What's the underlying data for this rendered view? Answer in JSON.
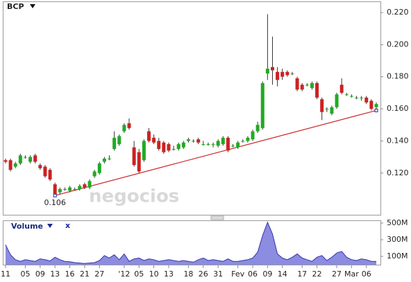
{
  "chart_data": [
    {
      "type": "candlestick",
      "title": "BCP",
      "categories": [
        "11",
        null,
        null,
        null,
        "05",
        null,
        null,
        "09",
        null,
        null,
        "13",
        null,
        null,
        "16",
        null,
        null,
        "21",
        null,
        null,
        "27",
        null,
        null,
        null,
        null,
        "'12",
        null,
        null,
        "05",
        null,
        null,
        "10",
        null,
        null,
        "13",
        null,
        null,
        null,
        "18",
        null,
        null,
        "26",
        null,
        null,
        "31",
        null,
        null,
        null,
        "Fev",
        null,
        null,
        "06",
        null,
        null,
        "09",
        null,
        null,
        "14",
        null,
        null,
        null,
        "17",
        null,
        null,
        "22",
        null,
        null,
        null,
        "27",
        null,
        null,
        "Mar",
        null,
        null,
        "06",
        null,
        null
      ],
      "open": [
        0.128,
        0.128,
        0.124,
        0.126,
        0.13,
        0.127,
        0.131,
        0.125,
        0.124,
        0.122,
        0.113,
        0.108,
        0.11,
        0.109,
        0.11,
        0.11,
        0.113,
        0.111,
        0.118,
        0.12,
        0.127,
        0.129,
        0.135,
        0.138,
        0.146,
        0.151,
        0.136,
        0.133,
        0.128,
        0.146,
        0.142,
        0.14,
        0.139,
        0.138,
        0.135,
        0.135,
        0.136,
        0.14,
        0.14,
        0.141,
        0.138,
        0.138,
        0.138,
        0.137,
        0.138,
        0.142,
        0.137,
        0.136,
        0.14,
        0.14,
        0.141,
        0.146,
        0.148,
        0.182,
        0.186,
        0.183,
        0.183,
        0.183,
        0.182,
        0.179,
        0.175,
        0.175,
        0.173,
        0.176,
        0.166,
        0.16,
        0.157,
        0.161,
        0.175,
        0.169,
        0.168,
        0.167,
        0.167,
        0.167,
        0.165,
        0.161
      ],
      "high": [
        0.129,
        0.129,
        0.127,
        0.132,
        0.131,
        0.131,
        0.132,
        0.126,
        0.125,
        0.123,
        0.114,
        0.111,
        0.111,
        0.112,
        0.111,
        0.113,
        0.114,
        0.116,
        0.122,
        0.127,
        0.13,
        0.131,
        0.146,
        0.144,
        0.151,
        0.154,
        0.14,
        0.135,
        0.141,
        0.148,
        0.144,
        0.142,
        0.14,
        0.139,
        0.137,
        0.139,
        0.14,
        0.142,
        0.141,
        0.142,
        0.14,
        0.139,
        0.139,
        0.141,
        0.143,
        0.143,
        0.138,
        0.14,
        0.141,
        0.143,
        0.147,
        0.152,
        0.177,
        0.219,
        0.205,
        0.186,
        0.185,
        0.184,
        0.183,
        0.18,
        0.176,
        0.176,
        0.177,
        0.177,
        0.167,
        0.161,
        0.162,
        0.17,
        0.179,
        0.17,
        0.169,
        0.168,
        0.168,
        0.168,
        0.166,
        0.164
      ],
      "low": [
        0.126,
        0.121,
        0.123,
        0.125,
        0.129,
        0.126,
        0.126,
        0.122,
        0.117,
        0.115,
        0.106,
        0.107,
        0.109,
        0.108,
        0.109,
        0.109,
        0.11,
        0.11,
        0.117,
        0.119,
        0.126,
        0.128,
        0.134,
        0.137,
        0.145,
        0.147,
        0.124,
        0.12,
        0.127,
        0.139,
        0.138,
        0.134,
        0.132,
        0.133,
        0.134,
        0.134,
        0.135,
        0.139,
        0.139,
        0.138,
        0.137,
        0.137,
        0.136,
        0.136,
        0.137,
        0.133,
        0.136,
        0.135,
        0.139,
        0.139,
        0.14,
        0.145,
        0.147,
        0.178,
        0.175,
        0.174,
        0.178,
        0.18,
        0.181,
        0.171,
        0.171,
        0.174,
        0.172,
        0.166,
        0.153,
        0.158,
        0.156,
        0.16,
        0.169,
        0.168,
        0.167,
        0.166,
        0.165,
        0.163,
        0.159,
        0.16
      ],
      "close": [
        0.127,
        0.122,
        0.126,
        0.131,
        0.13,
        0.13,
        0.127,
        0.123,
        0.118,
        0.116,
        0.107,
        0.11,
        0.11,
        0.111,
        0.11,
        0.112,
        0.111,
        0.115,
        0.121,
        0.126,
        0.129,
        0.129,
        0.142,
        0.143,
        0.15,
        0.148,
        0.125,
        0.121,
        0.14,
        0.14,
        0.139,
        0.135,
        0.133,
        0.134,
        0.135,
        0.138,
        0.139,
        0.141,
        0.14,
        0.139,
        0.138,
        0.138,
        0.138,
        0.14,
        0.142,
        0.134,
        0.137,
        0.139,
        0.14,
        0.142,
        0.146,
        0.15,
        0.176,
        0.185,
        0.184,
        0.178,
        0.18,
        0.181,
        0.182,
        0.172,
        0.172,
        0.175,
        0.176,
        0.167,
        0.158,
        0.16,
        0.161,
        0.169,
        0.17,
        0.169,
        0.168,
        0.167,
        0.167,
        0.164,
        0.16,
        0.163
      ],
      "up_color": "#22aa22",
      "down_color": "#cc2222",
      "ylim": [
        0.094,
        0.2265
      ],
      "yticks": [
        {
          "value": 0.12,
          "label": "0.120"
        },
        {
          "value": 0.14,
          "label": "0.140"
        },
        {
          "value": 0.16,
          "label": "0.160"
        },
        {
          "value": 0.18,
          "label": "0.180"
        },
        {
          "value": 0.2,
          "label": "0.200"
        },
        {
          "value": 0.22,
          "label": "0.220"
        }
      ],
      "trendline": {
        "x": [
          10,
          75
        ],
        "values": [
          0.106,
          0.159
        ],
        "color": "#cc2222"
      },
      "low_label": {
        "x": 10,
        "value": 0.106,
        "label": "0.106"
      },
      "watermark": "negocios"
    },
    {
      "type": "area",
      "title": "Volume",
      "close_label": "x",
      "values": [
        240,
        120,
        60,
        40,
        60,
        50,
        40,
        70,
        60,
        45,
        90,
        60,
        40,
        35,
        25,
        20,
        15,
        20,
        25,
        50,
        110,
        80,
        120,
        60,
        130,
        40,
        70,
        80,
        50,
        70,
        60,
        40,
        50,
        60,
        50,
        40,
        50,
        40,
        30,
        60,
        80,
        50,
        60,
        50,
        40,
        70,
        40,
        40,
        50,
        60,
        80,
        150,
        350,
        510,
        370,
        130,
        80,
        60,
        90,
        130,
        80,
        60,
        40,
        90,
        110,
        50,
        90,
        140,
        160,
        90,
        60,
        50,
        70,
        60,
        40,
        40
      ],
      "color": "#3333aa",
      "fill": "#8c8ce0",
      "ylim": [
        0,
        533
      ],
      "yticks": [
        {
          "value": 100,
          "label": "100M"
        },
        {
          "value": 300,
          "label": "300M"
        },
        {
          "value": 500,
          "label": "500M"
        }
      ]
    }
  ]
}
